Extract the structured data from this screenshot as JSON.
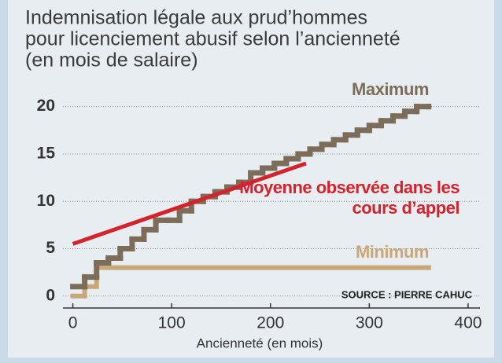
{
  "chart_data": {
    "type": "step",
    "title": [
      "Indemnisation légale aux prud’hommes",
      "pour licenciement abusif selon l’ancienneté",
      "(en mois de salaire)"
    ],
    "x_label": "Ancienneté (en mois)",
    "source": "SOURCE : PIERRE CAHUC",
    "xlim": [
      -10,
      412
    ],
    "xticks": [
      0,
      100,
      200,
      300,
      400
    ],
    "ylim": [
      -1.1,
      21.3
    ],
    "yticks": [
      0,
      5,
      10,
      15,
      20
    ],
    "grid": true,
    "series": [
      {
        "name": "Maximum",
        "color": "#7b6d5a",
        "kind": "step",
        "x": [
          0,
          12,
          24,
          36,
          48,
          60,
          72,
          84,
          96,
          108,
          120,
          132,
          144,
          156,
          168,
          180,
          192,
          204,
          216,
          228,
          240,
          252,
          264,
          276,
          288,
          300,
          312,
          324,
          336,
          348,
          360
        ],
        "values": [
          1,
          2,
          3.5,
          4,
          5,
          6,
          7,
          8,
          8,
          9,
          10,
          10.5,
          11,
          11.5,
          12,
          13,
          13.5,
          14,
          14.5,
          15,
          15.5,
          16,
          16.5,
          17,
          17.5,
          18,
          18.5,
          19,
          19.5,
          20,
          20
        ]
      },
      {
        "name": "Minimum",
        "color": "#c8a878",
        "kind": "step",
        "x": [
          0,
          12,
          24,
          360
        ],
        "values": [
          0,
          1,
          3,
          3
        ]
      },
      {
        "name": "Moyenne observée dans les cours d’appel",
        "color": "#d3232d",
        "kind": "line",
        "x": [
          0,
          236
        ],
        "values": [
          5.5,
          14
        ]
      }
    ]
  }
}
